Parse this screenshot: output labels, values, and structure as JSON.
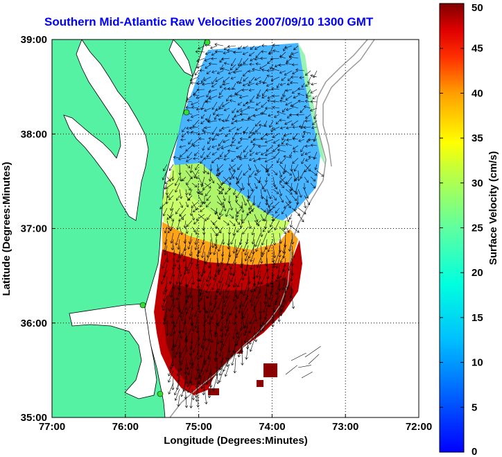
{
  "chart_data": {
    "type": "heatmap",
    "title": "Southern Mid-Atlantic Raw Velocities 2007/09/10 1300 GMT",
    "xlabel": "Longitude (Degrees:Minutes)",
    "ylabel": "Latitude (Degrees:Minutes)",
    "xlim": [
      -77,
      -72
    ],
    "ylim": [
      35,
      39
    ],
    "x_ticks": [
      {
        "value": -77,
        "label": "77:00"
      },
      {
        "value": -76,
        "label": "76:00"
      },
      {
        "value": -75,
        "label": "75:00"
      },
      {
        "value": -74,
        "label": "74:00"
      },
      {
        "value": -73,
        "label": "73:00"
      },
      {
        "value": -72,
        "label": "72:00"
      }
    ],
    "y_ticks": [
      {
        "value": 35,
        "label": "35:00"
      },
      {
        "value": 36,
        "label": "36:00"
      },
      {
        "value": 37,
        "label": "37:00"
      },
      {
        "value": 38,
        "label": "38:00"
      },
      {
        "value": 39,
        "label": "39:00"
      }
    ],
    "grid": true,
    "colorbar": {
      "label": "Surface Velocity (cm/s)",
      "range": [
        0,
        50
      ],
      "ticks": [
        0,
        5,
        10,
        15,
        20,
        25,
        30,
        35,
        40,
        45,
        50
      ],
      "colormap": "jet"
    },
    "velocity_zones": [
      {
        "region": "north (38:00-39:00)",
        "speed_cm_s": [
          5,
          15
        ]
      },
      {
        "region": "central (37:00-38:00)",
        "speed_cm_s": [
          10,
          30
        ]
      },
      {
        "region": "south (35:15-37:00)",
        "speed_cm_s": [
          35,
          50
        ]
      }
    ],
    "colors": {
      "land": "#55f2a3",
      "title": "#0000ff",
      "vectors": "#000000",
      "coastline": "#000000",
      "shelf_contour": "#999999",
      "station_marker": "#33dd33"
    }
  }
}
